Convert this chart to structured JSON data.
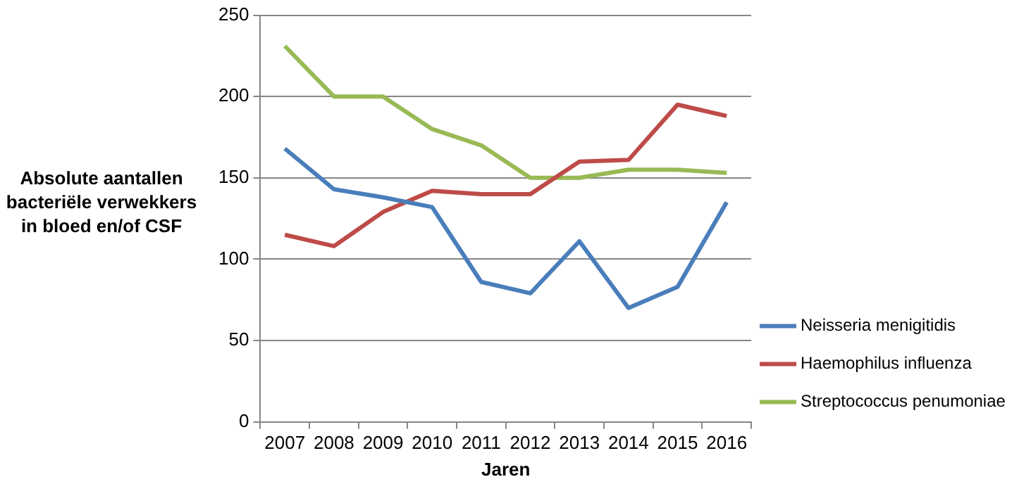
{
  "chart_data": {
    "type": "line",
    "xlabel": "Jaren",
    "ylabel": "Absolute aantallen bacteriële verwekkers in bloed en/of CSF",
    "categories": [
      "2007",
      "2008",
      "2009",
      "2010",
      "2011",
      "2012",
      "2013",
      "2014",
      "2015",
      "2016"
    ],
    "series": [
      {
        "name": "Neisseria menigitidis",
        "color": "#4a7ebb",
        "values": [
          168,
          143,
          138,
          132,
          86,
          79,
          111,
          70,
          83,
          135
        ]
      },
      {
        "name": "Haemophilus influenza",
        "color": "#be4b48",
        "values": [
          115,
          108,
          129,
          142,
          140,
          140,
          160,
          161,
          195,
          188
        ]
      },
      {
        "name": "Streptococcus penumoniae",
        "color": "#98b954",
        "values": [
          231,
          200,
          200,
          180,
          170,
          150,
          150,
          155,
          155,
          153
        ]
      }
    ],
    "ylim": [
      0,
      250
    ],
    "yticks": [
      0,
      50,
      100,
      150,
      200,
      250
    ],
    "grid": "y",
    "legend": "right",
    "marker": "none",
    "line_style": "solid"
  }
}
